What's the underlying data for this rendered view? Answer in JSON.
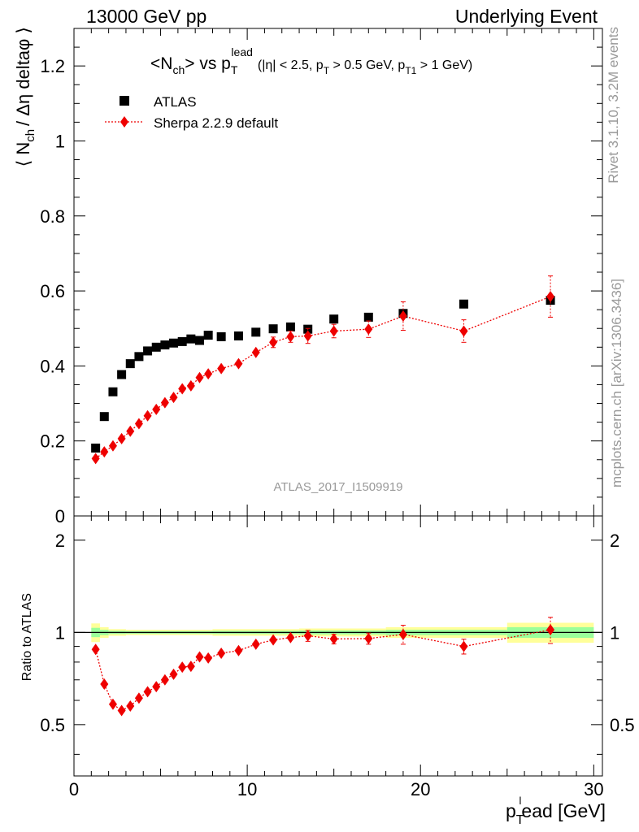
{
  "header": {
    "left": "13000 GeV pp",
    "right": "Underlying Event"
  },
  "side": {
    "rivet": "Rivet 3.1.10,  3.2M events",
    "mcplots": "mcplots.cern.ch [arXiv:1306.3436]"
  },
  "watermark": "ATLAS_2017_I1509919",
  "title": {
    "main_pre": "<N",
    "main_sub": "ch",
    "main_mid": "> vs p",
    "main_sub2": "T",
    "main_sup": "lead",
    "cuts": "(|η| < 2.5, p",
    "cuts_sub": "T",
    "cuts_mid": " > 0.5 GeV, p",
    "cuts_sub2": "T1",
    "cuts_end": " > 1 GeV)"
  },
  "colors": {
    "data": "#000000",
    "mc": "#ee0000",
    "band_inner": "#9aff9a",
    "band_outer": "#ffff9a",
    "watermark": "#999999"
  },
  "chart_data": {
    "type": "scatter",
    "xlabel": "p",
    "xlabel_sub": "T",
    "xlabel_sup": "l",
    "xlabel_end": "ead [GeV]",
    "ylabel_main": "⟨ N",
    "ylabel_main_sub": "ch",
    "ylabel_main_end": "/ Δη deltaφ ⟩",
    "ylabel_ratio": "Ratio to ATLAS",
    "xlim": [
      0,
      30.5
    ],
    "ylim_main": [
      0,
      1.3
    ],
    "ylim_ratio": [
      0.34,
      2.4
    ],
    "x_ticks": [
      "0",
      "10",
      "20",
      "30"
    ],
    "y_ticks_main": [
      "0",
      "0.2",
      "0.4",
      "0.6",
      "0.8",
      "1",
      "1.2"
    ],
    "y_ticks_ratio": [
      "0.5",
      "1",
      "2"
    ],
    "legend": {
      "position": "top-left",
      "entries": [
        "ATLAS",
        "Sherpa 2.2.9 default"
      ]
    },
    "series": [
      {
        "name": "ATLAS",
        "marker": "square",
        "x": [
          1.25,
          1.75,
          2.25,
          2.75,
          3.25,
          3.75,
          4.25,
          4.75,
          5.25,
          5.75,
          6.25,
          6.75,
          7.25,
          7.75,
          8.5,
          9.5,
          10.5,
          11.5,
          12.5,
          13.5,
          15.0,
          17.0,
          19.0,
          22.5,
          27.5
        ],
        "y": [
          0.181,
          0.265,
          0.331,
          0.377,
          0.406,
          0.425,
          0.44,
          0.45,
          0.456,
          0.461,
          0.465,
          0.472,
          0.468,
          0.482,
          0.478,
          0.48,
          0.49,
          0.499,
          0.504,
          0.498,
          0.525,
          0.53,
          0.54,
          0.565,
          0.575
        ],
        "yerr": [
          0.003,
          0.003,
          0.003,
          0.003,
          0.003,
          0.003,
          0.003,
          0.003,
          0.003,
          0.003,
          0.003,
          0.003,
          0.003,
          0.003,
          0.003,
          0.003,
          0.004,
          0.004,
          0.004,
          0.005,
          0.005,
          0.006,
          0.007,
          0.008,
          0.012
        ]
      },
      {
        "name": "Sherpa 2.2.9 default",
        "marker": "diamond",
        "x": [
          1.25,
          1.75,
          2.25,
          2.75,
          3.25,
          3.75,
          4.25,
          4.75,
          5.25,
          5.75,
          6.25,
          6.75,
          7.25,
          7.75,
          8.5,
          9.5,
          10.5,
          11.5,
          12.5,
          13.5,
          15.0,
          17.0,
          19.0,
          22.5,
          27.5
        ],
        "y": [
          0.153,
          0.171,
          0.187,
          0.206,
          0.226,
          0.246,
          0.267,
          0.284,
          0.302,
          0.316,
          0.339,
          0.347,
          0.369,
          0.379,
          0.393,
          0.406,
          0.436,
          0.463,
          0.478,
          0.48,
          0.493,
          0.498,
          0.533,
          0.493,
          0.585
        ],
        "yerr": [
          0.004,
          0.004,
          0.005,
          0.005,
          0.006,
          0.006,
          0.006,
          0.007,
          0.007,
          0.007,
          0.008,
          0.008,
          0.008,
          0.009,
          0.009,
          0.01,
          0.012,
          0.014,
          0.015,
          0.02,
          0.018,
          0.022,
          0.038,
          0.03,
          0.055
        ],
        "ratio": [
          0.88,
          0.678,
          0.583,
          0.556,
          0.575,
          0.61,
          0.64,
          0.665,
          0.7,
          0.73,
          0.77,
          0.775,
          0.832,
          0.825,
          0.855,
          0.872,
          0.915,
          0.945,
          0.962,
          0.975,
          0.952,
          0.955,
          0.985,
          0.9,
          1.02
        ],
        "ratio_err": [
          0.02,
          0.02,
          0.02,
          0.02,
          0.02,
          0.02,
          0.02,
          0.02,
          0.02,
          0.02,
          0.02,
          0.02,
          0.02,
          0.02,
          0.02,
          0.02,
          0.025,
          0.03,
          0.03,
          0.04,
          0.035,
          0.04,
          0.07,
          0.05,
          0.1
        ]
      }
    ],
    "bands": {
      "x_edges": [
        1.0,
        1.5,
        2.0,
        3.0,
        8.0,
        13.0,
        18.0,
        25.0,
        30.0
      ],
      "inner": [
        0.035,
        0.02,
        0.012,
        0.01,
        0.012,
        0.015,
        0.02,
        0.04
      ],
      "outer": [
        0.07,
        0.04,
        0.025,
        0.02,
        0.025,
        0.03,
        0.04,
        0.075
      ]
    }
  }
}
